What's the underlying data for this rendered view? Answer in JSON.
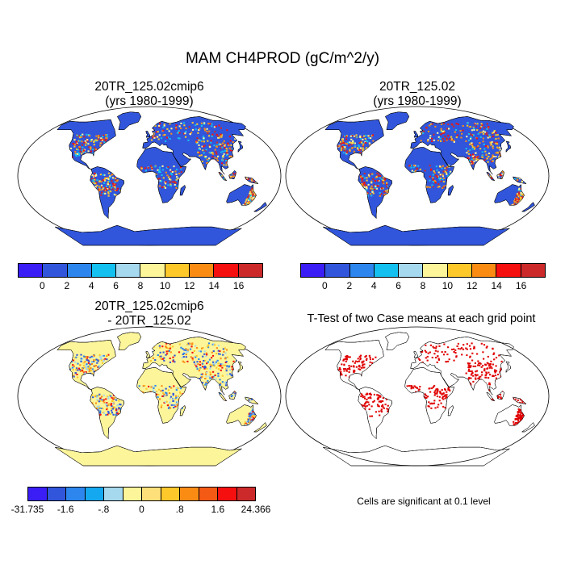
{
  "main_title": "MAM CH4PROD (gC/m^2/y)",
  "panels": [
    {
      "title_line1": "20TR_125.02cmip6",
      "title_line2": "(yrs 1980-1999)"
    },
    {
      "title_line1": "20TR_125.02",
      "title_line2": "(yrs 1980-1999)"
    },
    {
      "title_line1": "20TR_125.02cmip6",
      "title_line2": "- 20TR_125.02"
    },
    {
      "title_line1": "T-Test of two Case means at each grid point",
      "title_line2": ""
    }
  ],
  "colorbar_abs": {
    "colors": [
      "#3a1ef5",
      "#3156dc",
      "#2c86ee",
      "#14c0f0",
      "#a6d8ee",
      "#fcf59a",
      "#fdc82a",
      "#fa8c14",
      "#f50f0f",
      "#cc2a2a"
    ],
    "labels": [
      "0",
      "2",
      "4",
      "6",
      "8",
      "10",
      "12",
      "14",
      "16"
    ]
  },
  "colorbar_diff": {
    "colors": [
      "#3a1ef5",
      "#3156dc",
      "#2c86ee",
      "#14a8f0",
      "#a6d8ee",
      "#fcf59a",
      "#fde07a",
      "#fdc82a",
      "#fa8c14",
      "#f55a14",
      "#f50f0f",
      "#cc2a2a"
    ],
    "labels": [
      "-31.735",
      "-1.6",
      "-.8",
      "0",
      ".8",
      "1.6",
      "24.366"
    ]
  },
  "significance_note": "Cells are significant at 0.1 level",
  "map_colors": {
    "land_low": "#3156dc",
    "ocean": "#ffffff",
    "diff_land": "#fcf59a",
    "signif": "#e00000",
    "antarctica_diff": "#fcf59a"
  }
}
